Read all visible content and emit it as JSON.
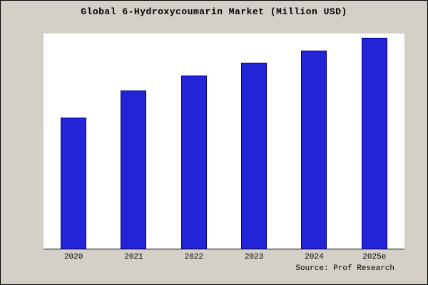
{
  "window": {
    "title": "Global 6-Hydroxycoumarin Market (Million USD)"
  },
  "source_label": "Source: Prof Research",
  "colors": {
    "background": "#d4d0c8",
    "plot_background": "#ffffff",
    "bar_fill": "#2323d7",
    "bar_border": "#00008b",
    "axis": "#000000"
  },
  "chart_data": {
    "type": "bar",
    "title": "Global 6-Hydroxycoumarin Market (Million USD)",
    "categories": [
      "2020",
      "2021",
      "2022",
      "2023",
      "2024",
      "2025e"
    ],
    "values": [
      62,
      75,
      82,
      88,
      94,
      100
    ],
    "xlabel": "",
    "ylabel": "",
    "ylim": [
      0,
      102
    ],
    "grid": false,
    "legend": false,
    "y_axis_ticks_visible": false,
    "annotation": "Source: Prof Research"
  }
}
